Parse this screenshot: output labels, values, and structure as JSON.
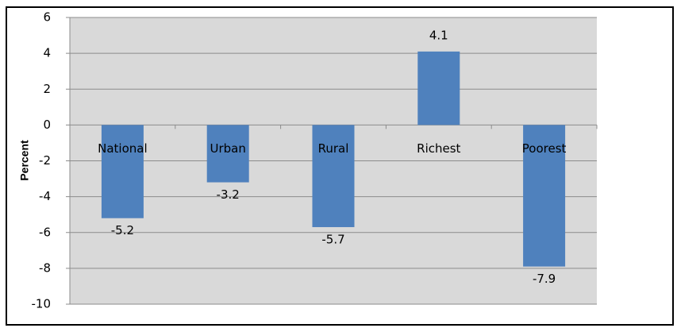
{
  "chart_data": {
    "type": "bar",
    "y_label": "Percent",
    "categories": [
      "National",
      "Urban",
      "Rural",
      "Richest",
      "Poorest"
    ],
    "values": [
      -5.2,
      -3.2,
      -5.7,
      4.1,
      -7.9
    ],
    "color": "#4f81bd",
    "ylim": [
      -10,
      6
    ],
    "yticks": [
      -10,
      -8,
      -6,
      -4,
      -2,
      0,
      2,
      4,
      6
    ],
    "grid": true
  }
}
